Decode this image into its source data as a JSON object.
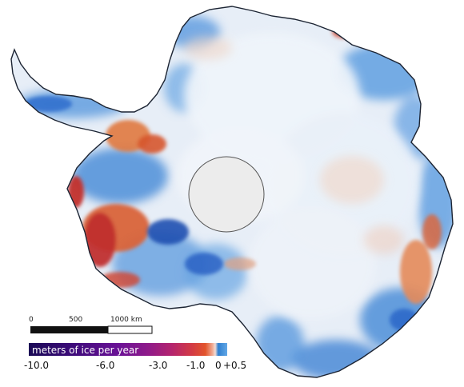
{
  "map": {
    "colors": {
      "land_base": "#e7eef7",
      "ocean": "#ffffff",
      "coast": "#1c2433",
      "pole_hole_fill": "#ececec",
      "pole_hole_stroke": "#555555"
    }
  },
  "scale_bar": {
    "labels": [
      "0",
      "500",
      "1000 km"
    ]
  },
  "legend": {
    "title": "meters of ice per year",
    "ticks": [
      "-10.0",
      "-6.0",
      "-3.0",
      "-1.0",
      "0",
      "+0.5"
    ],
    "gradient": [
      "#1a0a55",
      "#3d0b7a",
      "#6a1296",
      "#8e1a8a",
      "#b4246e",
      "#d23a45",
      "#e2542c",
      "#f0a890",
      "#f3dcd5",
      "#2f7fd0",
      "#62a7e6"
    ]
  }
}
